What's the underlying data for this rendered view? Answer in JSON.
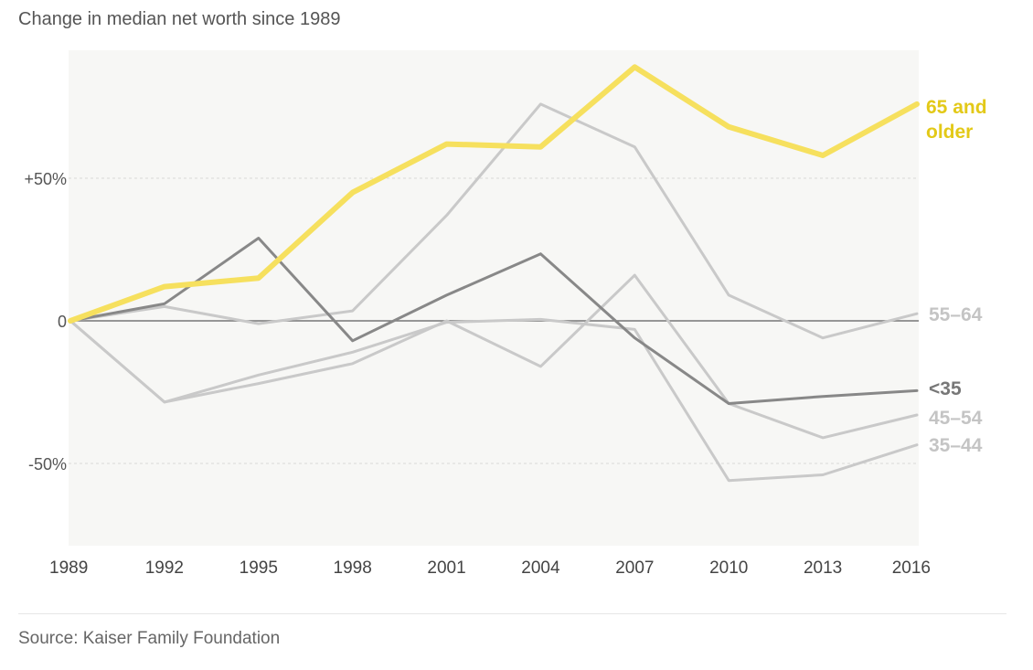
{
  "chart_data": {
    "type": "line",
    "title": "Change in median net worth since 1989",
    "source": "Source: Kaiser Family Foundation",
    "x": [
      "1989",
      "1992",
      "1995",
      "1998",
      "2001",
      "2004",
      "2007",
      "2010",
      "2013",
      "2016"
    ],
    "ylim": [
      -80,
      95
    ],
    "y_ticks": [
      {
        "value": 50,
        "label": "+50%"
      },
      {
        "value": 0,
        "label": "0"
      },
      {
        "value": -50,
        "label": "-50%"
      }
    ],
    "grid": "dotted horizontal at ±50%, solid zero line",
    "legend": "direct labels at right end of lines",
    "series": [
      {
        "name": "55–64",
        "color": "#c9c9c9",
        "width": 3,
        "values": [
          0,
          5,
          -1,
          3.5,
          37,
          76,
          61,
          9,
          -6,
          2.5
        ]
      },
      {
        "name": "45–54",
        "color": "#c9c9c9",
        "width": 3,
        "values": [
          0,
          -28.5,
          -22,
          -15,
          0,
          -16,
          16,
          -29,
          -41,
          -33
        ]
      },
      {
        "name": "35–44",
        "color": "#c9c9c9",
        "width": 3,
        "values": [
          0,
          -28.5,
          -19,
          -11,
          -0.5,
          0.5,
          -3,
          -56,
          -54,
          -43.5
        ]
      },
      {
        "name": "<35",
        "color": "#888888",
        "width": 3,
        "values": [
          0,
          6,
          29,
          -7,
          9,
          23.5,
          -6,
          -29,
          -26.5,
          -24.5
        ]
      },
      {
        "name": "65 and older",
        "label_lines": [
          "65 and",
          "older"
        ],
        "color": "#f6e05e",
        "label_color": "#e3c918",
        "width": 6,
        "values": [
          0,
          12,
          15,
          45,
          62,
          61,
          89,
          68,
          58,
          76
        ]
      }
    ]
  }
}
